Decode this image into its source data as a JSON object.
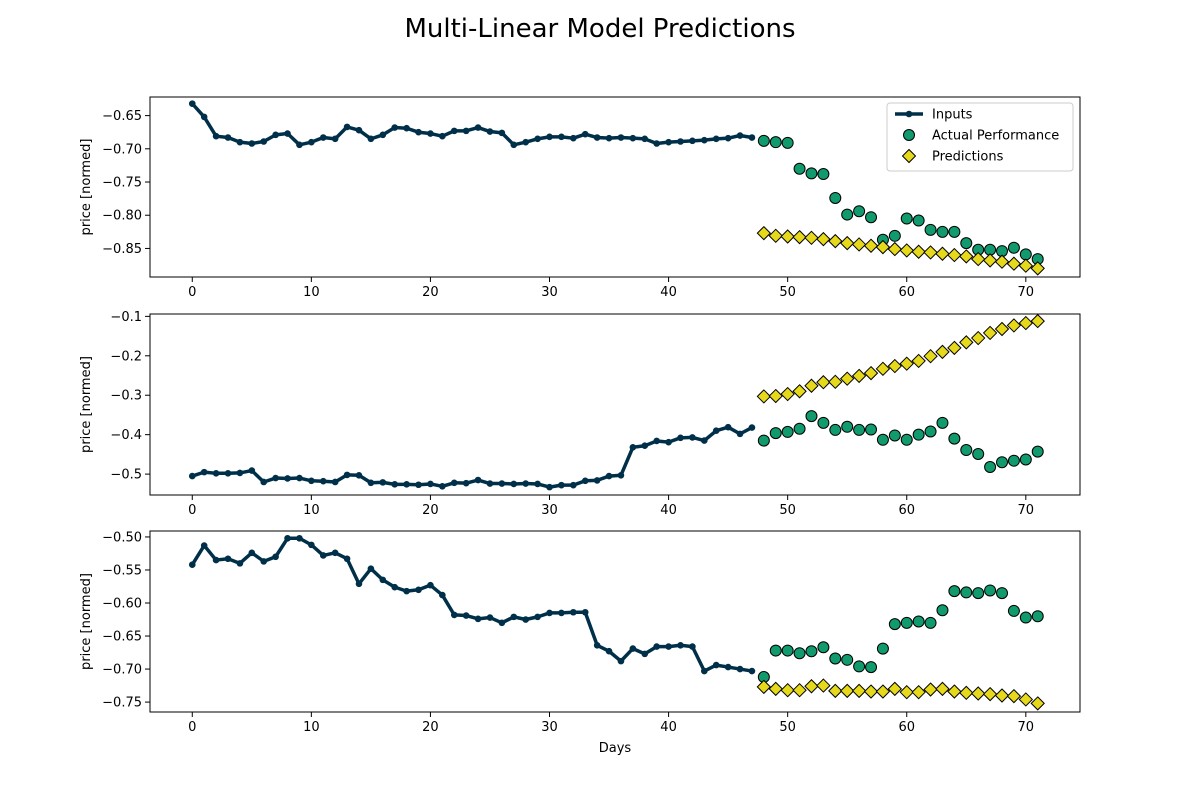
{
  "figure": {
    "title": "Multi-Linear Model Predictions"
  },
  "colors": {
    "inputs": "#003049",
    "actual": "#109a6e",
    "predictions": "#e6d81a",
    "edge": "#000000"
  },
  "chart_data": [
    {
      "type": "line",
      "ylabel": "price [normed]",
      "xlabel": "",
      "xlim": [
        -3.55,
        74.55
      ],
      "ylim": [
        -0.893,
        -0.622
      ],
      "xticks": [
        0,
        10,
        20,
        30,
        40,
        50,
        60,
        70
      ],
      "yticks": [
        -0.85,
        -0.8,
        -0.75,
        -0.7,
        -0.65
      ],
      "ytick_labels": [
        "−0.85",
        "−0.80",
        "−0.75",
        "−0.70",
        "−0.65"
      ],
      "legend": {
        "placement": "upper right",
        "entries": [
          "Inputs",
          "Actual Performance",
          "Predictions"
        ]
      },
      "series": [
        {
          "name": "Inputs",
          "kind": "line-marker",
          "x": [
            0,
            1,
            2,
            3,
            4,
            5,
            6,
            7,
            8,
            9,
            10,
            11,
            12,
            13,
            14,
            15,
            16,
            17,
            18,
            19,
            20,
            21,
            22,
            23,
            24,
            25,
            26,
            27,
            28,
            29,
            30,
            31,
            32,
            33,
            34,
            35,
            36,
            37,
            38,
            39,
            40,
            41,
            42,
            43,
            44,
            45,
            46,
            47
          ],
          "y": [
            -0.632,
            -0.652,
            -0.681,
            -0.683,
            -0.69,
            -0.692,
            -0.689,
            -0.679,
            -0.677,
            -0.694,
            -0.69,
            -0.683,
            -0.685,
            -0.667,
            -0.672,
            -0.685,
            -0.679,
            -0.668,
            -0.669,
            -0.675,
            -0.677,
            -0.681,
            -0.673,
            -0.673,
            -0.668,
            -0.674,
            -0.676,
            -0.694,
            -0.69,
            -0.685,
            -0.682,
            -0.682,
            -0.684,
            -0.678,
            -0.683,
            -0.684,
            -0.683,
            -0.684,
            -0.685,
            -0.692,
            -0.69,
            -0.689,
            -0.688,
            -0.687,
            -0.685,
            -0.684,
            -0.68,
            -0.683
          ]
        },
        {
          "name": "Actual Performance",
          "kind": "scatter-circle",
          "x": [
            48,
            49,
            50,
            51,
            52,
            53,
            54,
            55,
            56,
            57,
            58,
            59,
            60,
            61,
            62,
            63,
            64,
            65,
            66,
            67,
            68,
            69,
            70,
            71
          ],
          "y": [
            -0.688,
            -0.69,
            -0.691,
            -0.73,
            -0.737,
            -0.738,
            -0.774,
            -0.799,
            -0.794,
            -0.803,
            -0.837,
            -0.831,
            -0.805,
            -0.808,
            -0.822,
            -0.825,
            -0.825,
            -0.842,
            -0.852,
            -0.852,
            -0.854,
            -0.849,
            -0.859,
            -0.866
          ]
        },
        {
          "name": "Predictions",
          "kind": "scatter-diamond",
          "x": [
            48,
            49,
            50,
            51,
            52,
            53,
            54,
            55,
            56,
            57,
            58,
            59,
            60,
            61,
            62,
            63,
            64,
            65,
            66,
            67,
            68,
            69,
            70,
            71
          ],
          "y": [
            -0.827,
            -0.831,
            -0.832,
            -0.833,
            -0.834,
            -0.836,
            -0.839,
            -0.842,
            -0.844,
            -0.846,
            -0.848,
            -0.851,
            -0.853,
            -0.855,
            -0.856,
            -0.858,
            -0.86,
            -0.862,
            -0.866,
            -0.868,
            -0.87,
            -0.873,
            -0.876,
            -0.88
          ]
        }
      ]
    },
    {
      "type": "line",
      "ylabel": "price [normed]",
      "xlabel": "",
      "xlim": [
        -3.55,
        74.55
      ],
      "ylim": [
        -0.553,
        -0.094
      ],
      "xticks": [
        0,
        10,
        20,
        30,
        40,
        50,
        60,
        70
      ],
      "yticks": [
        -0.5,
        -0.4,
        -0.3,
        -0.2,
        -0.1
      ],
      "ytick_labels": [
        "−0.5",
        "−0.4",
        "−0.3",
        "−0.2",
        "−0.1"
      ],
      "series": [
        {
          "name": "Inputs",
          "kind": "line-marker",
          "x": [
            0,
            1,
            2,
            3,
            4,
            5,
            6,
            7,
            8,
            9,
            10,
            11,
            12,
            13,
            14,
            15,
            16,
            17,
            18,
            19,
            20,
            21,
            22,
            23,
            24,
            25,
            26,
            27,
            28,
            29,
            30,
            31,
            32,
            33,
            34,
            35,
            36,
            37,
            38,
            39,
            40,
            41,
            42,
            43,
            44,
            45,
            46,
            47
          ],
          "y": [
            -0.505,
            -0.495,
            -0.498,
            -0.498,
            -0.497,
            -0.491,
            -0.52,
            -0.51,
            -0.511,
            -0.51,
            -0.517,
            -0.518,
            -0.52,
            -0.502,
            -0.503,
            -0.522,
            -0.521,
            -0.526,
            -0.526,
            -0.527,
            -0.525,
            -0.531,
            -0.522,
            -0.523,
            -0.515,
            -0.524,
            -0.524,
            -0.525,
            -0.524,
            -0.525,
            -0.533,
            -0.528,
            -0.528,
            -0.517,
            -0.516,
            -0.505,
            -0.503,
            -0.432,
            -0.428,
            -0.416,
            -0.419,
            -0.408,
            -0.407,
            -0.415,
            -0.39,
            -0.381,
            -0.398,
            -0.382
          ]
        },
        {
          "name": "Actual Performance",
          "kind": "scatter-circle",
          "x": [
            48,
            49,
            50,
            51,
            52,
            53,
            54,
            55,
            56,
            57,
            58,
            59,
            60,
            61,
            62,
            63,
            64,
            65,
            66,
            67,
            68,
            69,
            70,
            71
          ],
          "y": [
            -0.415,
            -0.396,
            -0.393,
            -0.385,
            -0.353,
            -0.37,
            -0.388,
            -0.38,
            -0.388,
            -0.387,
            -0.413,
            -0.402,
            -0.413,
            -0.4,
            -0.392,
            -0.37,
            -0.41,
            -0.439,
            -0.449,
            -0.482,
            -0.47,
            -0.466,
            -0.463,
            -0.443
          ]
        },
        {
          "name": "Predictions",
          "kind": "scatter-diamond",
          "x": [
            48,
            49,
            50,
            51,
            52,
            53,
            54,
            55,
            56,
            57,
            58,
            59,
            60,
            61,
            62,
            63,
            64,
            65,
            66,
            67,
            68,
            69,
            70,
            71
          ],
          "y": [
            -0.303,
            -0.302,
            -0.297,
            -0.29,
            -0.276,
            -0.267,
            -0.266,
            -0.258,
            -0.251,
            -0.244,
            -0.233,
            -0.226,
            -0.22,
            -0.213,
            -0.201,
            -0.19,
            -0.18,
            -0.166,
            -0.155,
            -0.142,
            -0.132,
            -0.123,
            -0.117,
            -0.112
          ]
        }
      ]
    },
    {
      "type": "line",
      "ylabel": "price [normed]",
      "xlabel": "Days",
      "xlim": [
        -3.55,
        74.55
      ],
      "ylim": [
        -0.765,
        -0.491
      ],
      "xticks": [
        0,
        10,
        20,
        30,
        40,
        50,
        60,
        70
      ],
      "yticks": [
        -0.75,
        -0.7,
        -0.65,
        -0.6,
        -0.55,
        -0.5
      ],
      "ytick_labels": [
        "−0.75",
        "−0.70",
        "−0.65",
        "−0.60",
        "−0.55",
        "−0.50"
      ],
      "series": [
        {
          "name": "Inputs",
          "kind": "line-marker",
          "x": [
            0,
            1,
            2,
            3,
            4,
            5,
            6,
            7,
            8,
            9,
            10,
            11,
            12,
            13,
            14,
            15,
            16,
            17,
            18,
            19,
            20,
            21,
            22,
            23,
            24,
            25,
            26,
            27,
            28,
            29,
            30,
            31,
            32,
            33,
            34,
            35,
            36,
            37,
            38,
            39,
            40,
            41,
            42,
            43,
            44,
            45,
            46,
            47
          ],
          "y": [
            -0.542,
            -0.513,
            -0.535,
            -0.533,
            -0.54,
            -0.524,
            -0.537,
            -0.53,
            -0.502,
            -0.502,
            -0.512,
            -0.528,
            -0.524,
            -0.533,
            -0.571,
            -0.548,
            -0.565,
            -0.576,
            -0.582,
            -0.58,
            -0.573,
            -0.588,
            -0.618,
            -0.619,
            -0.624,
            -0.622,
            -0.63,
            -0.621,
            -0.625,
            -0.621,
            -0.615,
            -0.615,
            -0.614,
            -0.614,
            -0.664,
            -0.673,
            -0.688,
            -0.669,
            -0.677,
            -0.666,
            -0.666,
            -0.664,
            -0.666,
            -0.703,
            -0.694,
            -0.697,
            -0.7,
            -0.703
          ]
        },
        {
          "name": "Actual Performance",
          "kind": "scatter-circle",
          "x": [
            48,
            49,
            50,
            51,
            52,
            53,
            54,
            55,
            56,
            57,
            58,
            59,
            60,
            61,
            62,
            63,
            64,
            65,
            66,
            67,
            68,
            69,
            70,
            71
          ],
          "y": [
            -0.712,
            -0.672,
            -0.672,
            -0.676,
            -0.673,
            -0.667,
            -0.684,
            -0.686,
            -0.696,
            -0.697,
            -0.669,
            -0.632,
            -0.63,
            -0.628,
            -0.63,
            -0.611,
            -0.582,
            -0.584,
            -0.585,
            -0.581,
            -0.585,
            -0.612,
            -0.622,
            -0.62
          ]
        },
        {
          "name": "Predictions",
          "kind": "scatter-diamond",
          "x": [
            48,
            49,
            50,
            51,
            52,
            53,
            54,
            55,
            56,
            57,
            58,
            59,
            60,
            61,
            62,
            63,
            64,
            65,
            66,
            67,
            68,
            69,
            70,
            71
          ],
          "y": [
            -0.727,
            -0.73,
            -0.732,
            -0.732,
            -0.726,
            -0.725,
            -0.733,
            -0.733,
            -0.733,
            -0.734,
            -0.734,
            -0.73,
            -0.735,
            -0.735,
            -0.731,
            -0.73,
            -0.734,
            -0.736,
            -0.737,
            -0.738,
            -0.74,
            -0.741,
            -0.746,
            -0.752
          ]
        }
      ]
    }
  ]
}
